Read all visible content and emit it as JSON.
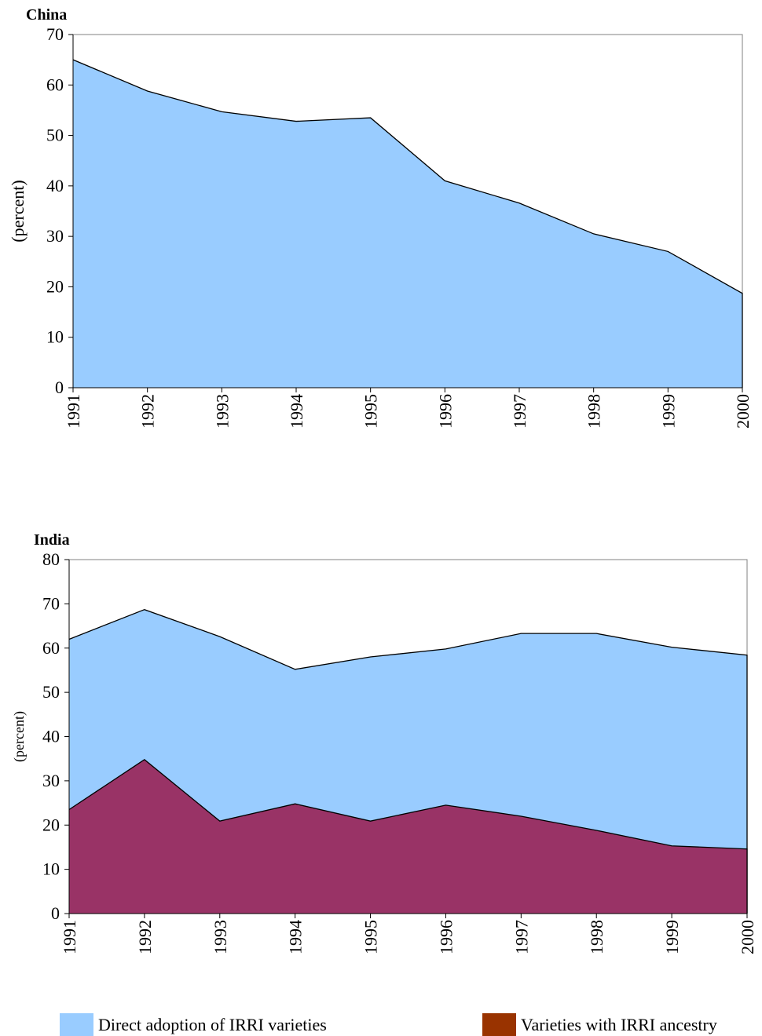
{
  "chart_data": [
    {
      "type": "area",
      "title": "China",
      "y_label": "(percent)",
      "x": [
        1991,
        1992,
        1993,
        1994,
        1995,
        1996,
        1997,
        1998,
        1999,
        2000
      ],
      "xlim": [
        1991,
        2000
      ],
      "ylim": [
        0,
        70
      ],
      "yticks": [
        0,
        10,
        20,
        30,
        40,
        50,
        60,
        70
      ],
      "series": [
        {
          "name": "Direct adoption of IRRI varieties",
          "color": "#99ccff",
          "legend_color": "#99ccff",
          "values": [
            65,
            58.8,
            54.7,
            52.8,
            53.5,
            41,
            36.6,
            30.5,
            27,
            18.7
          ]
        }
      ]
    },
    {
      "type": "area",
      "title": "India",
      "y_label": "(percent)",
      "x": [
        1991,
        1992,
        1993,
        1994,
        1995,
        1996,
        1997,
        1998,
        1999,
        2000
      ],
      "xlim": [
        1991,
        2000
      ],
      "ylim": [
        0,
        80
      ],
      "yticks": [
        0,
        10,
        20,
        30,
        40,
        50,
        60,
        70,
        80
      ],
      "series": [
        {
          "name": "Direct adoption of IRRI varieties",
          "color": "#99ccff",
          "legend_color": "#99ccff",
          "values": [
            62,
            68.7,
            62.6,
            55.2,
            58,
            59.8,
            63.3,
            63.3,
            60.2,
            58.4
          ]
        },
        {
          "name": "Varieties with IRRI ancestry",
          "color": "#993366",
          "legend_color": "#993300",
          "values": [
            23.5,
            34.8,
            20.9,
            24.8,
            20.9,
            24.5,
            22,
            18.8,
            15.3,
            14.6
          ]
        }
      ],
      "legend": "bottom"
    }
  ]
}
